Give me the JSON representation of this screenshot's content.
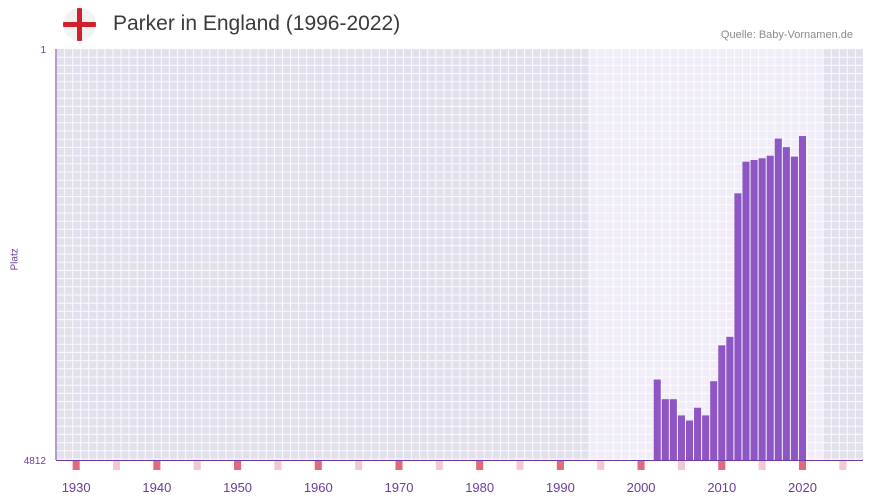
{
  "header": {
    "title": "Parker in England (1996-2022)",
    "source": "Quelle: Baby-Vornamen.de",
    "flag_colors": {
      "background": "#f2f2f2",
      "cross": "#d0202e"
    }
  },
  "chart_data": {
    "type": "bar",
    "title": "Parker in England (1996-2022)",
    "xlabel": "",
    "ylabel": "Platz",
    "y_inverted": true,
    "ylim": [
      1,
      4812
    ],
    "y_ticks": [
      "1",
      "4812"
    ],
    "x_range": [
      1928,
      2028
    ],
    "x_ticks": [
      1930,
      1940,
      1950,
      1960,
      1970,
      1980,
      1990,
      2000,
      2010,
      2020
    ],
    "data_available_range": [
      1996,
      2022
    ],
    "series": [
      {
        "name": "Parker",
        "color": "#8e55c4",
        "years": [
          2002,
          2003,
          2004,
          2005,
          2006,
          2007,
          2008,
          2009,
          2010,
          2011,
          2012,
          2013,
          2014,
          2015,
          2016,
          2017,
          2018,
          2019,
          2020
        ],
        "ranks": [
          3870,
          4100,
          4100,
          4290,
          4350,
          4200,
          4290,
          3890,
          3470,
          3370,
          1690,
          1320,
          1300,
          1280,
          1250,
          1050,
          1150,
          1260,
          1020
        ]
      }
    ],
    "colors": {
      "plot_bg_outside": "#e3e0ee",
      "plot_bg_inside": "#f0edf8",
      "grid": "#ffffff",
      "axis": "#6a3d9a",
      "tick_label": "#6a3d9a",
      "marker_strong": "#e0697c",
      "marker_light": "#f3c8d2"
    }
  }
}
